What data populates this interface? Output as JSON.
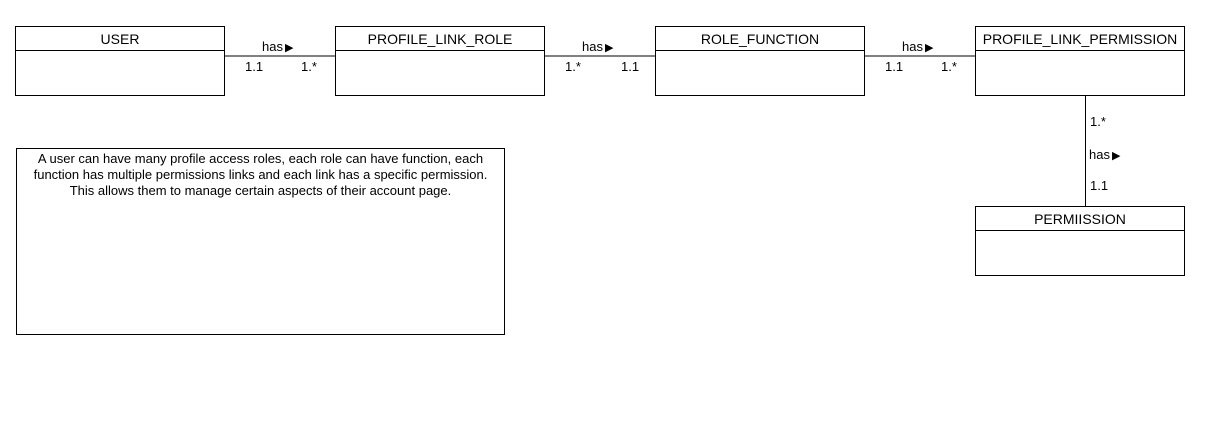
{
  "entities": {
    "user": "USER",
    "profile_link_role": "PROFILE_LINK_ROLE",
    "role_function": "ROLE_FUNCTION",
    "profile_link_permission": "PROFILE_LINK_PERMISSION",
    "permission": "PERMIISSION"
  },
  "associations": {
    "user_role": {
      "label": "has",
      "left_mult": "1.1",
      "right_mult": "1.*"
    },
    "role_function": {
      "label": "has",
      "left_mult": "1.*",
      "right_mult": "1.1"
    },
    "function_permission_link": {
      "label": "has",
      "left_mult": "1.1",
      "right_mult": "1.*"
    },
    "link_permission": {
      "label": "has",
      "top_mult": "1.*",
      "bottom_mult": "1.1"
    }
  },
  "direction_glyph": "▶",
  "note": {
    "lines": [
      "A user can have many profile access roles, each role can have function, each",
      "function has multiple permissions links and each link has a specific permission.",
      "This allows them to manage certain aspects of their account page."
    ]
  }
}
